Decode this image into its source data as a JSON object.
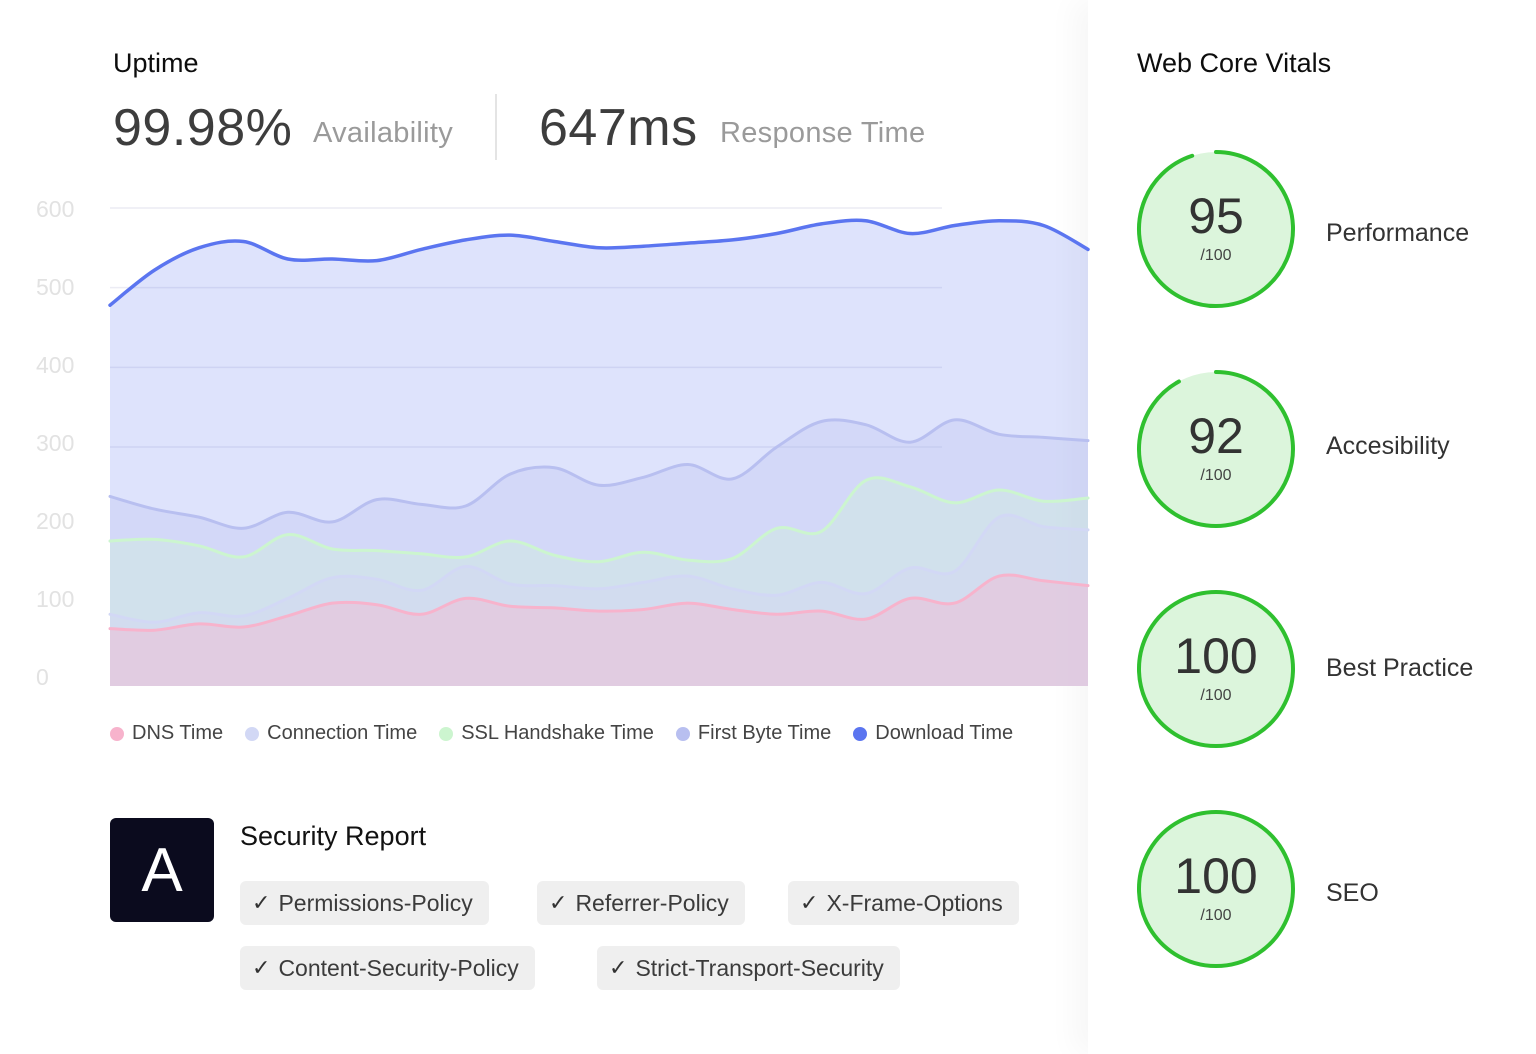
{
  "uptime": {
    "title": "Uptime",
    "availability_value": "99.98%",
    "availability_label": "Availability",
    "response_value": "647ms",
    "response_label": "Response Time"
  },
  "chart_data": {
    "type": "area",
    "ylim": [
      0,
      600
    ],
    "y_ticks": [
      "600",
      "500",
      "400",
      "300",
      "200",
      "100",
      "0"
    ],
    "grid": true,
    "legend_position": "bottom",
    "series": [
      {
        "name": "DNS Time",
        "color": "#f7b3cc",
        "values": [
          72,
          70,
          78,
          74,
          88,
          104,
          102,
          90,
          110,
          100,
          98,
          94,
          96,
          104,
          96,
          90,
          94,
          84,
          110,
          104,
          138,
          132,
          126
        ]
      },
      {
        "name": "Connection Time",
        "color": "#d2d8f5",
        "values": [
          90,
          80,
          92,
          88,
          110,
          136,
          134,
          120,
          150,
          128,
          126,
          122,
          130,
          138,
          122,
          114,
          130,
          116,
          148,
          144,
          212,
          200,
          196
        ]
      },
      {
        "name": "SSL Handshake Time",
        "color": "#ccf5cf",
        "values": [
          182,
          184,
          176,
          162,
          190,
          172,
          170,
          166,
          162,
          182,
          164,
          156,
          168,
          158,
          160,
          198,
          194,
          258,
          250,
          230,
          246,
          232,
          236
        ]
      },
      {
        "name": "First Byte Time",
        "color": "#b8bff0",
        "values": [
          238,
          222,
          212,
          198,
          218,
          206,
          234,
          228,
          226,
          266,
          274,
          252,
          262,
          278,
          260,
          300,
          332,
          328,
          306,
          334,
          316,
          312,
          308
        ]
      },
      {
        "name": "Download Time",
        "color": "#5b75f0",
        "values": [
          478,
          522,
          550,
          558,
          536,
          536,
          534,
          548,
          560,
          566,
          558,
          550,
          552,
          556,
          560,
          568,
          580,
          584,
          568,
          578,
          584,
          578,
          548
        ]
      }
    ]
  },
  "security": {
    "grade": "A",
    "title": "Security Report",
    "headers": [
      "Permissions-Policy",
      "Referrer-Policy",
      "X-Frame-Options",
      "Content-Security-Policy",
      "Strict-Transport-Security"
    ],
    "check_icon": "check-icon"
  },
  "vitals": {
    "title": "Web Core Vitals",
    "max_label": "/100",
    "ring_color": "#2fc02f",
    "fill_color": "#dcf5dc",
    "items": [
      {
        "score": "95",
        "score_fraction": 0.95,
        "label": "Performance"
      },
      {
        "score": "92",
        "score_fraction": 0.92,
        "label": "Accesibility"
      },
      {
        "score": "100",
        "score_fraction": 1.0,
        "label": "Best Practice"
      },
      {
        "score": "100",
        "score_fraction": 1.0,
        "label": "SEO"
      }
    ]
  }
}
